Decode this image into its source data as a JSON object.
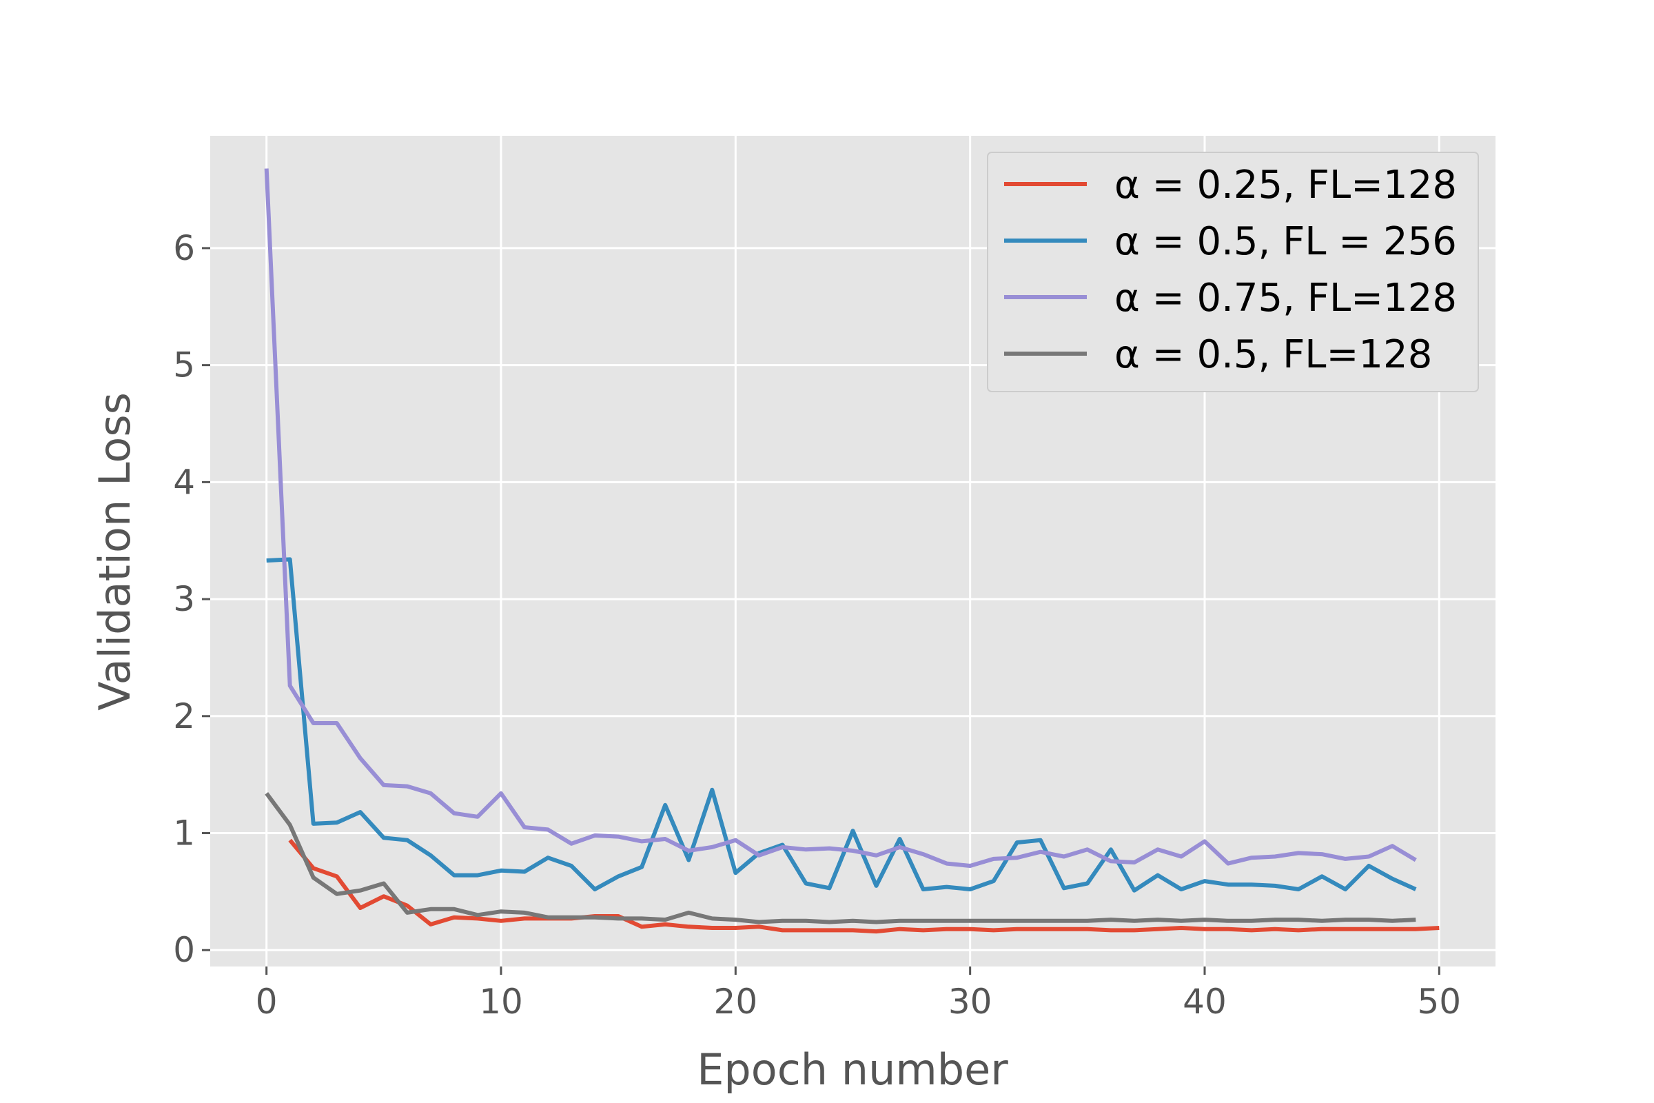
{
  "chart_data": {
    "type": "line",
    "xlabel": "Epoch number",
    "ylabel": "Validation Loss",
    "xlim": [
      -2.4,
      52.4
    ],
    "ylim": [
      -0.14,
      6.96
    ],
    "xticks": [
      0,
      10,
      20,
      30,
      40,
      50
    ],
    "yticks": [
      0,
      1,
      2,
      3,
      4,
      5,
      6
    ],
    "grid": true,
    "background": "#e5e5e5",
    "legend_position": "top-right",
    "series": [
      {
        "name": "α = 0.25, FL=128",
        "color": "#e24a33",
        "x": [
          1,
          2,
          3,
          4,
          5,
          6,
          7,
          8,
          9,
          10,
          11,
          12,
          13,
          14,
          15,
          16,
          17,
          18,
          19,
          20,
          21,
          22,
          23,
          24,
          25,
          26,
          27,
          28,
          29,
          30,
          31,
          32,
          33,
          34,
          35,
          36,
          37,
          38,
          39,
          40,
          41,
          42,
          43,
          44,
          45,
          46,
          47,
          48,
          49,
          50
        ],
        "y": [
          0.94,
          0.7,
          0.63,
          0.36,
          0.46,
          0.38,
          0.22,
          0.28,
          0.27,
          0.25,
          0.27,
          0.27,
          0.27,
          0.29,
          0.29,
          0.2,
          0.22,
          0.2,
          0.19,
          0.19,
          0.2,
          0.17,
          0.17,
          0.17,
          0.17,
          0.16,
          0.18,
          0.17,
          0.18,
          0.18,
          0.17,
          0.18,
          0.18,
          0.18,
          0.18,
          0.17,
          0.17,
          0.18,
          0.19,
          0.18,
          0.18,
          0.17,
          0.18,
          0.17,
          0.18,
          0.18,
          0.18,
          0.18,
          0.18,
          0.19
        ]
      },
      {
        "name": "α = 0.5, FL = 256",
        "color": "#348abd",
        "x": [
          0,
          1,
          2,
          3,
          4,
          5,
          6,
          7,
          8,
          9,
          10,
          11,
          12,
          13,
          14,
          15,
          16,
          17,
          18,
          19,
          20,
          21,
          22,
          23,
          24,
          25,
          26,
          27,
          28,
          29,
          30,
          31,
          32,
          33,
          34,
          35,
          36,
          37,
          38,
          39,
          40,
          41,
          42,
          43,
          44,
          45,
          46,
          47,
          48,
          49
        ],
        "y": [
          3.33,
          3.34,
          1.08,
          1.09,
          1.18,
          0.96,
          0.94,
          0.81,
          0.64,
          0.64,
          0.68,
          0.67,
          0.79,
          0.72,
          0.52,
          0.63,
          0.71,
          1.24,
          0.77,
          1.37,
          0.66,
          0.83,
          0.9,
          0.57,
          0.53,
          1.02,
          0.55,
          0.95,
          0.52,
          0.54,
          0.52,
          0.59,
          0.92,
          0.94,
          0.53,
          0.57,
          0.86,
          0.51,
          0.64,
          0.52,
          0.59,
          0.56,
          0.56,
          0.55,
          0.52,
          0.63,
          0.52,
          0.72,
          0.61,
          0.52
        ]
      },
      {
        "name": "α  = 0.75, FL=128",
        "color": "#988ed5",
        "x": [
          0,
          1,
          2,
          3,
          4,
          5,
          6,
          7,
          8,
          9,
          10,
          11,
          12,
          13,
          14,
          15,
          16,
          17,
          18,
          19,
          20,
          21,
          22,
          23,
          24,
          25,
          26,
          27,
          28,
          29,
          30,
          31,
          32,
          33,
          34,
          35,
          36,
          37,
          38,
          39,
          40,
          41,
          42,
          43,
          44,
          45,
          46,
          47,
          48,
          49
        ],
        "y": [
          6.68,
          2.26,
          1.94,
          1.94,
          1.64,
          1.41,
          1.4,
          1.34,
          1.17,
          1.14,
          1.34,
          1.05,
          1.03,
          0.91,
          0.98,
          0.97,
          0.93,
          0.95,
          0.85,
          0.88,
          0.94,
          0.81,
          0.88,
          0.86,
          0.87,
          0.85,
          0.81,
          0.88,
          0.82,
          0.74,
          0.72,
          0.78,
          0.79,
          0.84,
          0.8,
          0.86,
          0.76,
          0.75,
          0.86,
          0.8,
          0.93,
          0.74,
          0.79,
          0.8,
          0.83,
          0.82,
          0.78,
          0.8,
          0.89,
          0.77
        ]
      },
      {
        "name": "α  = 0.5, FL=128",
        "color": "#777777",
        "x": [
          0,
          1,
          2,
          3,
          4,
          5,
          6,
          7,
          8,
          9,
          10,
          11,
          12,
          13,
          14,
          15,
          16,
          17,
          18,
          19,
          20,
          21,
          22,
          23,
          24,
          25,
          26,
          27,
          28,
          29,
          30,
          31,
          32,
          33,
          34,
          35,
          36,
          37,
          38,
          39,
          40,
          41,
          42,
          43,
          44,
          45,
          46,
          47,
          48,
          49
        ],
        "y": [
          1.34,
          1.07,
          0.62,
          0.48,
          0.51,
          0.57,
          0.32,
          0.35,
          0.35,
          0.3,
          0.33,
          0.32,
          0.28,
          0.28,
          0.28,
          0.27,
          0.27,
          0.26,
          0.32,
          0.27,
          0.26,
          0.24,
          0.25,
          0.25,
          0.24,
          0.25,
          0.24,
          0.25,
          0.25,
          0.25,
          0.25,
          0.25,
          0.25,
          0.25,
          0.25,
          0.25,
          0.26,
          0.25,
          0.26,
          0.25,
          0.26,
          0.25,
          0.25,
          0.26,
          0.26,
          0.25,
          0.26,
          0.26,
          0.25,
          0.26
        ]
      }
    ]
  }
}
